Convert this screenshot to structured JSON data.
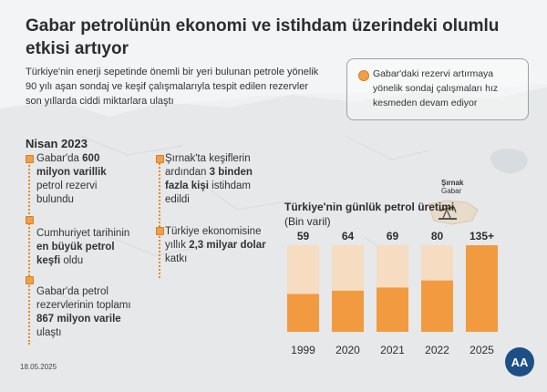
{
  "title": "Gabar petrolünün ekonomi ve istihdam üzerindeki olumlu etkisi artıyor",
  "intro": "Türkiye'nin enerji sepetinde önemli bir yeri bulunan petrole yönelik 90 yılı aşan sondaj ve keşif çalışmalarıyla tespit edilen rezervler son yıllarda ciddi miktarlara ulaştı",
  "note": "Gabar'daki rezervi artırmaya yönelik sondaj çalışmaları hız kesmeden devam ediyor",
  "timeline_heading": "Nisan 2023",
  "timeline_left": [
    {
      "pre": "Gabar'da ",
      "bold": "600 milyon varillik",
      "post": " petrol rezervi bulundu"
    },
    {
      "pre": "Cumhuriyet tarihinin ",
      "bold": "en büyük petrol keşfi",
      "post": " oldu"
    },
    {
      "pre": "Gabar'da petrol rezervlerinin toplamı ",
      "bold": "867 milyon varile",
      "post": " ulaştı"
    }
  ],
  "timeline_right": [
    {
      "pre": "Şırnak'ta keşiflerin ardından ",
      "bold": "3 binden fazla kişi",
      "post": " istihdam edildi"
    },
    {
      "pre": "Türkiye ekonomisine yıllık ",
      "bold": "2,3 milyar dolar",
      "post": " katkı"
    }
  ],
  "map_label": {
    "city": "Şırnak",
    "place": "Gabar"
  },
  "date": "18.05.2025",
  "logo_text": "AA",
  "colors": {
    "accent": "#f29a3f",
    "bar_bg": "#f6dcc1",
    "dark_text": "#2d2d2d"
  },
  "chart_data": {
    "type": "bar",
    "title_bold": "Türkiye'nin günlük petrol üretimi",
    "title_unit": "(Bin varil)",
    "categories": [
      "1999",
      "2020",
      "2021",
      "2022",
      "2025"
    ],
    "values": [
      59,
      64,
      69,
      80,
      135
    ],
    "value_labels": [
      "59",
      "64",
      "69",
      "80",
      "135+"
    ],
    "ylim": [
      0,
      135
    ],
    "grid": false,
    "legend": "none"
  }
}
